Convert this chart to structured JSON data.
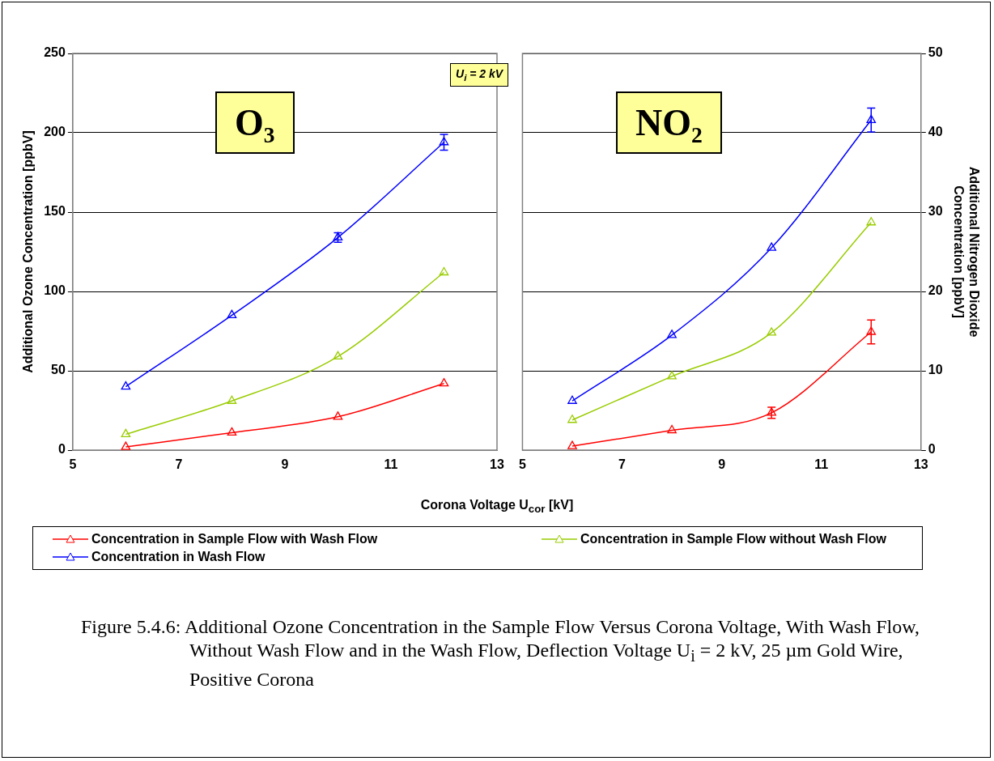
{
  "chart_data": [
    {
      "type": "line",
      "ylabel": "Additional Ozone Concentration [ppbV]",
      "xlabel": "Corona Voltage U$_{cor}$ [kV]",
      "x": [
        6,
        8,
        10,
        12
      ],
      "xlim": [
        5,
        13
      ],
      "xticks": [
        5,
        7,
        9,
        11,
        13
      ],
      "ylim": [
        0,
        250
      ],
      "yticks": [
        0,
        50,
        100,
        150,
        200,
        250
      ],
      "grid": "y",
      "marker": "triangle",
      "line_style": "solid",
      "legend": "bottom",
      "annotations": [
        "O₃",
        "U$_{i}$ = 2 kV",
        "Figure 5.4.6: Additional Ozone Concentration in the Sample Flow Versus Corona Voltage, With Wash Flow, Without Wash Flow and in the Wash Flow, Deflection Voltage U$_{i}$ = 2 kV, 25 µm Gold Wire, Positive Corona"
      ],
      "series": [
        {
          "name": "Concentration in Sample Flow with Wash Flow",
          "color": "#ff0000",
          "values": [
            2,
            11,
            21,
            42
          ],
          "errors": [
            null,
            null,
            null,
            null
          ]
        },
        {
          "name": "Concentration in Sample Flow without Wash Flow",
          "color": "#99cc00",
          "values": [
            10,
            31,
            59,
            112
          ]
        },
        {
          "name": "Concentration in Wash Flow",
          "color": "#0000ff",
          "values": [
            40,
            85,
            134,
            194
          ],
          "errors": [
            null,
            null,
            3,
            5
          ]
        }
      ]
    },
    {
      "type": "line",
      "y2label": "Additional Nitrogen Dioxide Concentration [ppbV]",
      "x": [
        6,
        8,
        10,
        12
      ],
      "xlim": [
        5,
        13
      ],
      "xticks": [
        5,
        7,
        9,
        11,
        13
      ],
      "y2lim": [
        0,
        50
      ],
      "y2ticks": [
        0,
        10,
        20,
        30,
        40,
        50
      ],
      "grid": "y",
      "marker": "triangle",
      "line_style": "solid",
      "annotations": [
        "NO₂"
      ],
      "series": [
        {
          "color": "#ff0000",
          "values": [
            0.5,
            2.5,
            4.7,
            14.9
          ],
          "errors": [
            null,
            null,
            0.7,
            1.5
          ],
          "axis": "y2"
        },
        {
          "color": "#99cc00",
          "values": [
            3.8,
            9.3,
            14.8,
            28.7
          ],
          "axis": "y2"
        },
        {
          "color": "#0000ff",
          "values": [
            6.2,
            14.5,
            25.5,
            41.6
          ],
          "errors": [
            null,
            null,
            null,
            1.5
          ],
          "axis": "y2"
        }
      ]
    }
  ]
}
